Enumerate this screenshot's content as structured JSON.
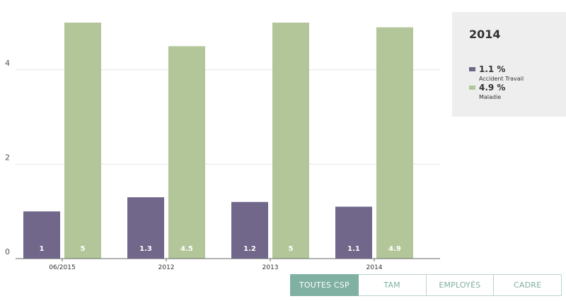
{
  "colors": {
    "series_1": "#70678a",
    "series_2": "#b2c69a",
    "grid": "#e5e5e5",
    "axis": "#666666",
    "active_filter": "#7fb0a2"
  },
  "chart_data": {
    "type": "bar",
    "categories": [
      "06/2015",
      "2012",
      "2013",
      "2014"
    ],
    "series": [
      {
        "values": [
          1,
          1.3,
          1.2,
          1.1
        ],
        "labels": [
          "1",
          "1.3",
          "1.2",
          "1.1"
        ]
      },
      {
        "values": [
          5,
          4.5,
          5,
          4.9
        ],
        "labels": [
          "5",
          "4.5",
          "5",
          "4.9"
        ]
      }
    ],
    "ylim": [
      0,
      5
    ],
    "yticks": [
      0,
      2,
      4
    ],
    "grid": true,
    "legend": "right"
  },
  "legend": {
    "title": "2014",
    "items": [
      {
        "value": "1.1 %",
        "name": "Accident Travail"
      },
      {
        "value": "4.9 %",
        "name": "Maladie"
      }
    ]
  },
  "filters": [
    {
      "label": "TOUTES CSP",
      "active": true
    },
    {
      "label": "TAM",
      "active": false
    },
    {
      "label": "EMPLOYÉS",
      "active": false
    },
    {
      "label": "CADRE",
      "active": false
    }
  ]
}
